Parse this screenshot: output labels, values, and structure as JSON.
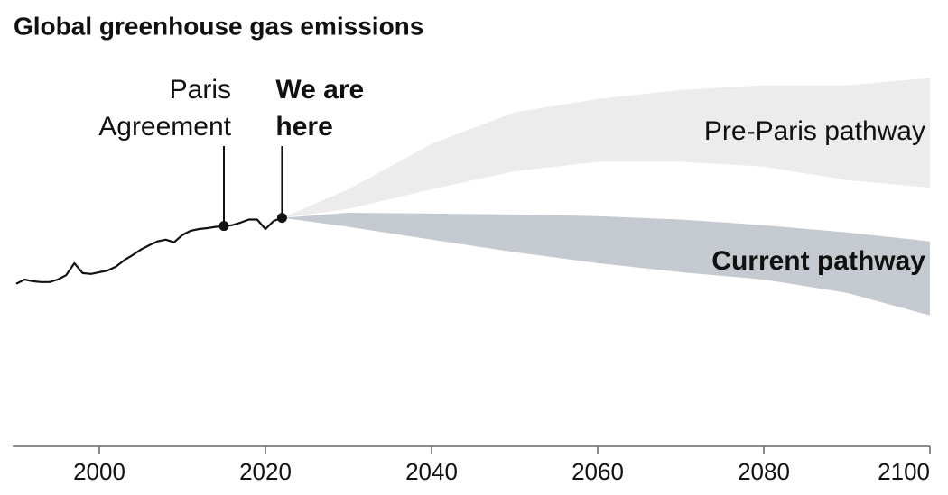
{
  "chart_data": {
    "type": "line",
    "title": "Global greenhouse gas emissions",
    "xlim": [
      1990,
      2100
    ],
    "xticks": [
      2000,
      2020,
      2040,
      2060,
      2080,
      2100
    ],
    "ylim": [
      0,
      90
    ],
    "series": [
      {
        "color": "#111111",
        "x": [
          1990,
          1991,
          1992,
          1993,
          1994,
          1995,
          1996,
          1997,
          1998,
          1999,
          2000,
          2001,
          2002,
          2003,
          2004,
          2005,
          2006,
          2007,
          2008,
          2009,
          2010,
          2011,
          2012,
          2013,
          2014,
          2015,
          2016,
          2017,
          2018,
          2019,
          2020,
          2021,
          2022
        ],
        "values": [
          38,
          39,
          38.6,
          38.4,
          38.4,
          39,
          40,
          42.8,
          40.5,
          40.3,
          40.7,
          41.1,
          42,
          43.5,
          44.7,
          46,
          47,
          47.9,
          48.3,
          47.7,
          49.4,
          50.4,
          50.8,
          51,
          51.3,
          51.5,
          51.7,
          52.3,
          53,
          53,
          50.8,
          52.7,
          53.4
        ]
      }
    ],
    "bands": [
      {
        "name": "Pre-Paris pathway",
        "color": "#ececec",
        "bold": false,
        "x": [
          2022,
          2030,
          2040,
          2050,
          2060,
          2070,
          2080,
          2090,
          2100
        ],
        "upper": [
          53.4,
          60.1,
          70.7,
          78.1,
          81.2,
          83.3,
          84.4,
          84.4,
          86.1
        ],
        "lower": [
          53.4,
          55.5,
          60.1,
          64.3,
          66.5,
          66.5,
          65.4,
          62.2,
          60.5
        ]
      },
      {
        "name": "Current pathway",
        "color": "#c5cad1",
        "bold": true,
        "x": [
          2022,
          2030,
          2040,
          2050,
          2060,
          2070,
          2080,
          2090,
          2100
        ],
        "upper": [
          53.4,
          54.6,
          54.4,
          54.2,
          53.8,
          53.0,
          51.7,
          50.0,
          47.9
        ],
        "lower": [
          53.4,
          51.3,
          48.3,
          45.4,
          42.8,
          40.7,
          39.0,
          35.9,
          30.6
        ]
      }
    ],
    "annotations": [
      {
        "lines": [
          "Paris",
          "Agreement"
        ],
        "x": 2015,
        "y": 51.5,
        "align": "end",
        "bold": false
      },
      {
        "lines": [
          "We are",
          "here"
        ],
        "x": 2022,
        "y": 53.4,
        "align": "start",
        "bold": true
      }
    ]
  }
}
